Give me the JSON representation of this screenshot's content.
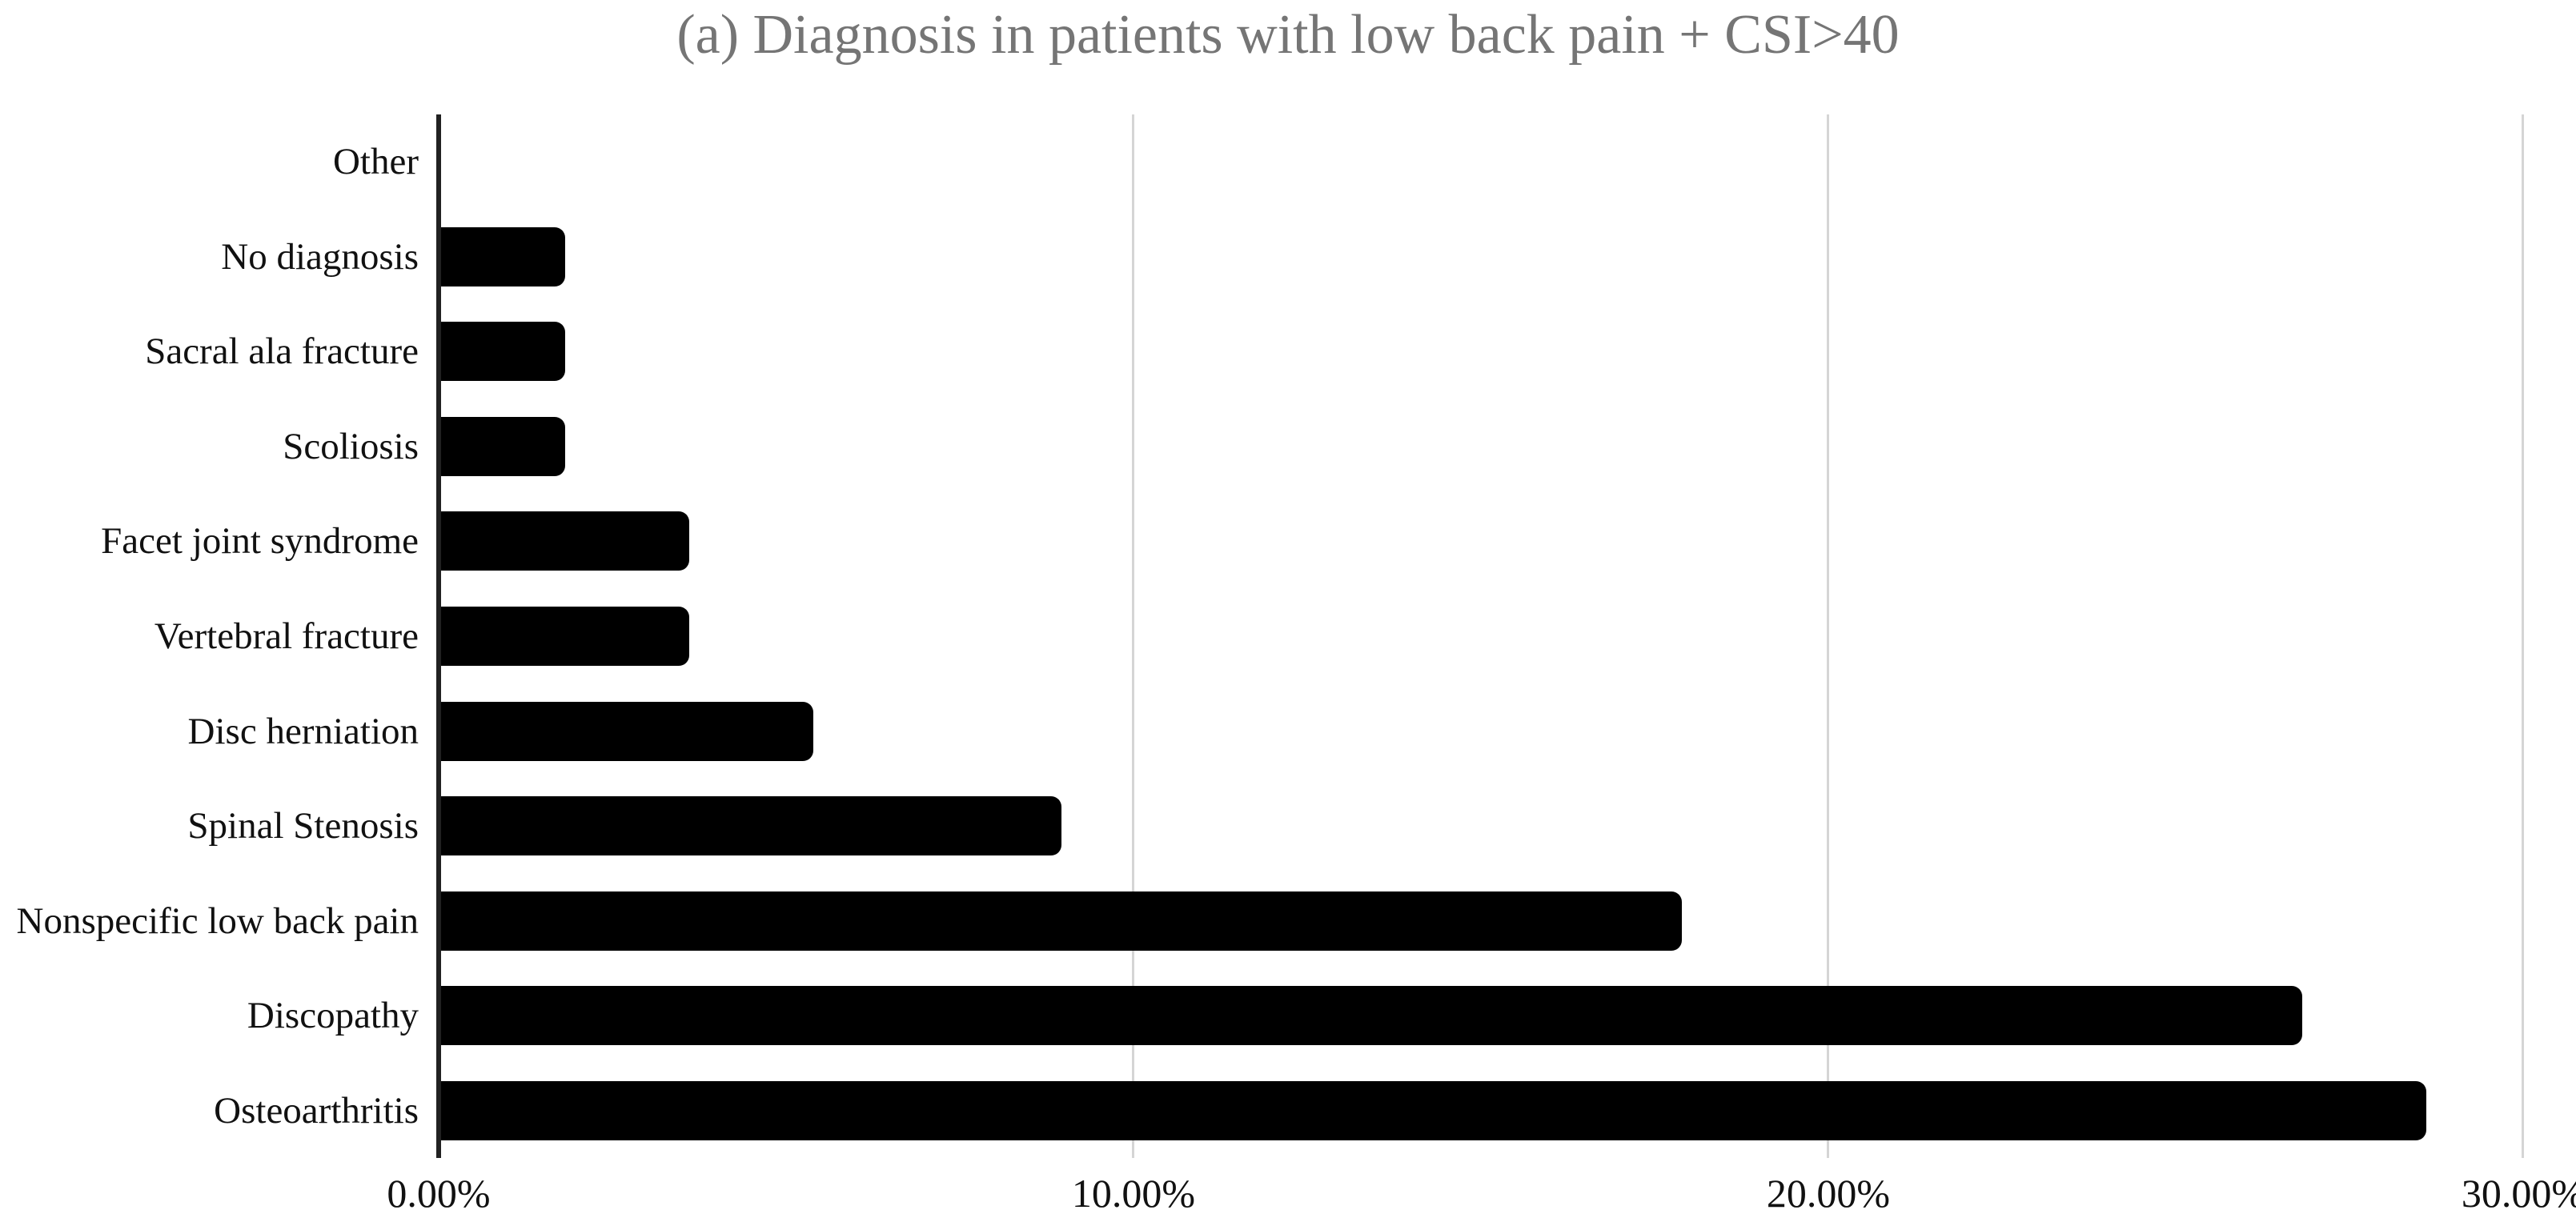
{
  "chart_data": {
    "type": "bar",
    "orientation": "horizontal",
    "title": "(a) Diagnosis in patients with low back pain + CSI>40",
    "categories": [
      "Other",
      "No diagnosis",
      "Sacral ala fracture",
      "Scoliosis",
      "Facet joint syndrome",
      "Vertebral fracture",
      "Disc herniation",
      "Spinal Stenosis",
      "Nonspecific low back pain",
      "Discopathy",
      "Osteoarthritis"
    ],
    "values": [
      0,
      1.79,
      1.79,
      1.79,
      3.57,
      3.57,
      5.36,
      8.93,
      17.86,
      26.79,
      28.57
    ],
    "unit": "%",
    "xlabel": "",
    "ylabel": "",
    "x_ticks": [
      "0.00%",
      "10.00%",
      "20.00%",
      "30.00%"
    ],
    "xlim": [
      0,
      30
    ],
    "grid": true,
    "legend": false,
    "bar_color": "#000000",
    "axis_color": "#212121",
    "gridline_color": "#d5d5d5",
    "title_color": "#757575"
  }
}
